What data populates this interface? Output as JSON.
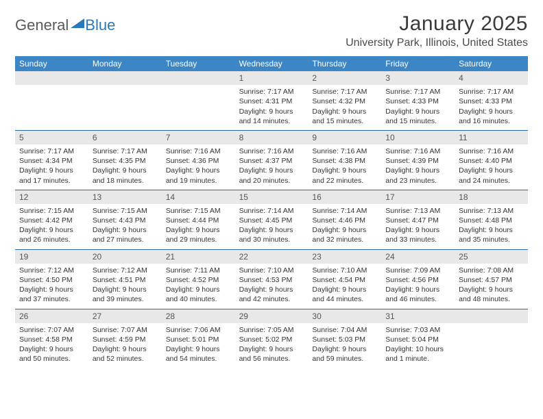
{
  "logo": {
    "text1": "General",
    "text2": "Blue",
    "shape_color": "#2a7ab8"
  },
  "title": "January 2025",
  "location": "University Park, Illinois, United States",
  "day_headers": [
    "Sunday",
    "Monday",
    "Tuesday",
    "Wednesday",
    "Thursday",
    "Friday",
    "Saturday"
  ],
  "colors": {
    "header_bg": "#3d86c6",
    "header_text": "#ffffff",
    "band_bg": "#e8e8e8",
    "rule": "#2b6aa3"
  },
  "weeks": [
    [
      {
        "n": "",
        "sr": "",
        "ss": "",
        "dl": ""
      },
      {
        "n": "",
        "sr": "",
        "ss": "",
        "dl": ""
      },
      {
        "n": "",
        "sr": "",
        "ss": "",
        "dl": ""
      },
      {
        "n": "1",
        "sr": "Sunrise: 7:17 AM",
        "ss": "Sunset: 4:31 PM",
        "dl": "Daylight: 9 hours and 14 minutes."
      },
      {
        "n": "2",
        "sr": "Sunrise: 7:17 AM",
        "ss": "Sunset: 4:32 PM",
        "dl": "Daylight: 9 hours and 15 minutes."
      },
      {
        "n": "3",
        "sr": "Sunrise: 7:17 AM",
        "ss": "Sunset: 4:33 PM",
        "dl": "Daylight: 9 hours and 15 minutes."
      },
      {
        "n": "4",
        "sr": "Sunrise: 7:17 AM",
        "ss": "Sunset: 4:33 PM",
        "dl": "Daylight: 9 hours and 16 minutes."
      }
    ],
    [
      {
        "n": "5",
        "sr": "Sunrise: 7:17 AM",
        "ss": "Sunset: 4:34 PM",
        "dl": "Daylight: 9 hours and 17 minutes."
      },
      {
        "n": "6",
        "sr": "Sunrise: 7:17 AM",
        "ss": "Sunset: 4:35 PM",
        "dl": "Daylight: 9 hours and 18 minutes."
      },
      {
        "n": "7",
        "sr": "Sunrise: 7:16 AM",
        "ss": "Sunset: 4:36 PM",
        "dl": "Daylight: 9 hours and 19 minutes."
      },
      {
        "n": "8",
        "sr": "Sunrise: 7:16 AM",
        "ss": "Sunset: 4:37 PM",
        "dl": "Daylight: 9 hours and 20 minutes."
      },
      {
        "n": "9",
        "sr": "Sunrise: 7:16 AM",
        "ss": "Sunset: 4:38 PM",
        "dl": "Daylight: 9 hours and 22 minutes."
      },
      {
        "n": "10",
        "sr": "Sunrise: 7:16 AM",
        "ss": "Sunset: 4:39 PM",
        "dl": "Daylight: 9 hours and 23 minutes."
      },
      {
        "n": "11",
        "sr": "Sunrise: 7:16 AM",
        "ss": "Sunset: 4:40 PM",
        "dl": "Daylight: 9 hours and 24 minutes."
      }
    ],
    [
      {
        "n": "12",
        "sr": "Sunrise: 7:15 AM",
        "ss": "Sunset: 4:42 PM",
        "dl": "Daylight: 9 hours and 26 minutes."
      },
      {
        "n": "13",
        "sr": "Sunrise: 7:15 AM",
        "ss": "Sunset: 4:43 PM",
        "dl": "Daylight: 9 hours and 27 minutes."
      },
      {
        "n": "14",
        "sr": "Sunrise: 7:15 AM",
        "ss": "Sunset: 4:44 PM",
        "dl": "Daylight: 9 hours and 29 minutes."
      },
      {
        "n": "15",
        "sr": "Sunrise: 7:14 AM",
        "ss": "Sunset: 4:45 PM",
        "dl": "Daylight: 9 hours and 30 minutes."
      },
      {
        "n": "16",
        "sr": "Sunrise: 7:14 AM",
        "ss": "Sunset: 4:46 PM",
        "dl": "Daylight: 9 hours and 32 minutes."
      },
      {
        "n": "17",
        "sr": "Sunrise: 7:13 AM",
        "ss": "Sunset: 4:47 PM",
        "dl": "Daylight: 9 hours and 33 minutes."
      },
      {
        "n": "18",
        "sr": "Sunrise: 7:13 AM",
        "ss": "Sunset: 4:48 PM",
        "dl": "Daylight: 9 hours and 35 minutes."
      }
    ],
    [
      {
        "n": "19",
        "sr": "Sunrise: 7:12 AM",
        "ss": "Sunset: 4:50 PM",
        "dl": "Daylight: 9 hours and 37 minutes."
      },
      {
        "n": "20",
        "sr": "Sunrise: 7:12 AM",
        "ss": "Sunset: 4:51 PM",
        "dl": "Daylight: 9 hours and 39 minutes."
      },
      {
        "n": "21",
        "sr": "Sunrise: 7:11 AM",
        "ss": "Sunset: 4:52 PM",
        "dl": "Daylight: 9 hours and 40 minutes."
      },
      {
        "n": "22",
        "sr": "Sunrise: 7:10 AM",
        "ss": "Sunset: 4:53 PM",
        "dl": "Daylight: 9 hours and 42 minutes."
      },
      {
        "n": "23",
        "sr": "Sunrise: 7:10 AM",
        "ss": "Sunset: 4:54 PM",
        "dl": "Daylight: 9 hours and 44 minutes."
      },
      {
        "n": "24",
        "sr": "Sunrise: 7:09 AM",
        "ss": "Sunset: 4:56 PM",
        "dl": "Daylight: 9 hours and 46 minutes."
      },
      {
        "n": "25",
        "sr": "Sunrise: 7:08 AM",
        "ss": "Sunset: 4:57 PM",
        "dl": "Daylight: 9 hours and 48 minutes."
      }
    ],
    [
      {
        "n": "26",
        "sr": "Sunrise: 7:07 AM",
        "ss": "Sunset: 4:58 PM",
        "dl": "Daylight: 9 hours and 50 minutes."
      },
      {
        "n": "27",
        "sr": "Sunrise: 7:07 AM",
        "ss": "Sunset: 4:59 PM",
        "dl": "Daylight: 9 hours and 52 minutes."
      },
      {
        "n": "28",
        "sr": "Sunrise: 7:06 AM",
        "ss": "Sunset: 5:01 PM",
        "dl": "Daylight: 9 hours and 54 minutes."
      },
      {
        "n": "29",
        "sr": "Sunrise: 7:05 AM",
        "ss": "Sunset: 5:02 PM",
        "dl": "Daylight: 9 hours and 56 minutes."
      },
      {
        "n": "30",
        "sr": "Sunrise: 7:04 AM",
        "ss": "Sunset: 5:03 PM",
        "dl": "Daylight: 9 hours and 59 minutes."
      },
      {
        "n": "31",
        "sr": "Sunrise: 7:03 AM",
        "ss": "Sunset: 5:04 PM",
        "dl": "Daylight: 10 hours and 1 minute."
      },
      {
        "n": "",
        "sr": "",
        "ss": "",
        "dl": ""
      }
    ]
  ]
}
